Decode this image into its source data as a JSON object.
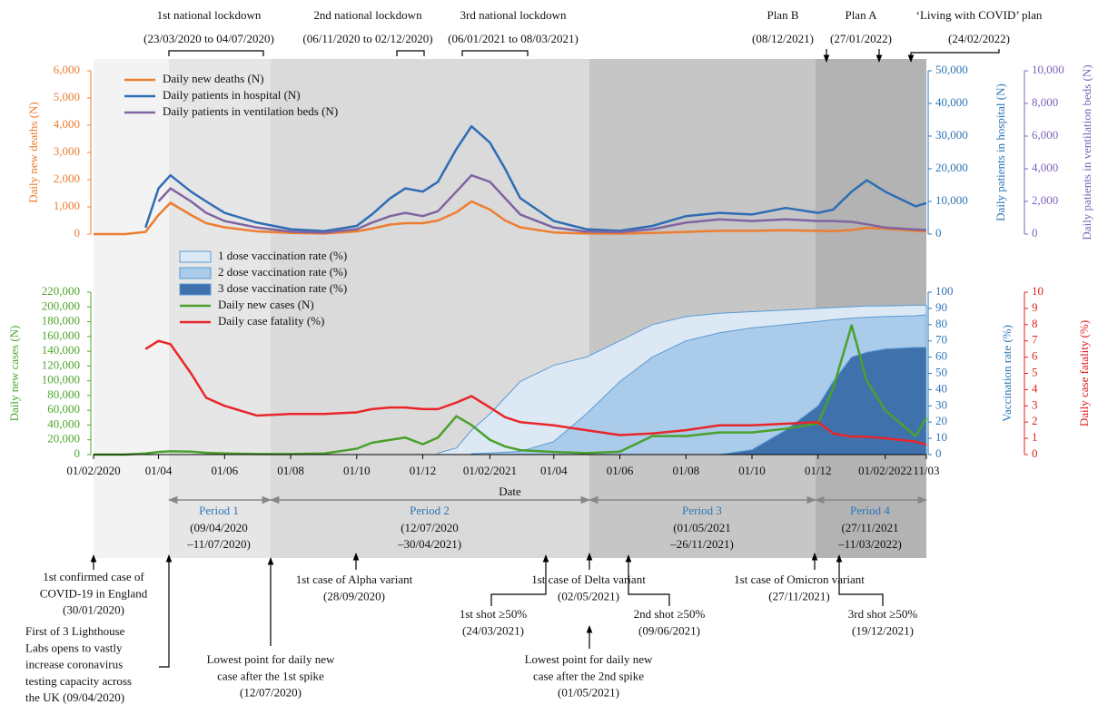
{
  "chart_data": [
    {
      "type": "line",
      "x": [
        "2020-02-01",
        "2020-03-01",
        "2020-03-20",
        "2020-04-01",
        "2020-04-12",
        "2020-05-01",
        "2020-05-15",
        "2020-06-01",
        "2020-07-01",
        "2020-08-01",
        "2020-09-01",
        "2020-10-01",
        "2020-10-15",
        "2020-11-01",
        "2020-11-15",
        "2020-12-01",
        "2020-12-15",
        "2021-01-01",
        "2021-01-15",
        "2021-02-01",
        "2021-02-15",
        "2021-03-01",
        "2021-04-01",
        "2021-05-01",
        "2021-06-01",
        "2021-07-01",
        "2021-08-01",
        "2021-09-01",
        "2021-10-01",
        "2021-11-01",
        "2021-12-01",
        "2021-12-15",
        "2022-01-01",
        "2022-01-15",
        "2022-02-01",
        "2022-03-01",
        "2022-03-11"
      ],
      "xlim": [
        "2020-02-01",
        "2022-03-11"
      ],
      "ylabel": "Daily new deaths (N)",
      "y_color": "#ed7d31",
      "ylim": [
        0,
        6000
      ],
      "yticks": [
        0,
        {
          "value": 1000,
          "label": "1,000"
        },
        {
          "value": 2000,
          "label": "2,000"
        },
        {
          "value": 3000,
          "label": "3,000"
        },
        {
          "value": 4000,
          "label": "4,000"
        },
        {
          "value": 5000,
          "label": "5,000"
        },
        {
          "value": 6000,
          "label": "6,000"
        }
      ],
      "y2label": "Daily patients in hospital (N)",
      "y2_color": "#2e75b6",
      "y2lim": [
        0,
        50000
      ],
      "y2ticks": [
        0,
        {
          "value": 10000,
          "label": "10,000"
        },
        {
          "value": 20000,
          "label": "20,000"
        },
        {
          "value": 30000,
          "label": "30,000"
        },
        {
          "value": 40000,
          "label": "40,000"
        },
        {
          "value": 50000,
          "label": "50,000"
        }
      ],
      "y3label": "Daily patients in ventilation beds (N)",
      "y3_color": "#7f63b8",
      "y3lim": [
        0,
        10000
      ],
      "y3ticks": [
        0,
        {
          "value": 2000,
          "label": "2,000"
        },
        {
          "value": 4000,
          "label": "4,000"
        },
        {
          "value": 6000,
          "label": "6,000"
        },
        {
          "value": 8000,
          "label": "8,000"
        },
        {
          "value": 10000,
          "label": "10,000"
        }
      ],
      "legend": "upper left",
      "series": [
        {
          "name": "Daily new deaths (N)",
          "color": "#ed7d31",
          "axis": "y",
          "values": [
            0,
            0,
            80,
            700,
            1150,
            700,
            400,
            250,
            100,
            40,
            20,
            100,
            200,
            350,
            400,
            400,
            500,
            800,
            1200,
            900,
            500,
            250,
            60,
            20,
            15,
            40,
            80,
            120,
            120,
            140,
            120,
            110,
            150,
            230,
            200,
            120,
            100
          ]
        },
        {
          "name": "Daily patients in hospital (N)",
          "color": "#2e6db4",
          "axis": "y2",
          "values": [
            null,
            null,
            2000,
            14000,
            18000,
            13000,
            10000,
            6500,
            3500,
            1500,
            900,
            2500,
            6000,
            11000,
            14000,
            13000,
            16000,
            26000,
            33000,
            28000,
            20000,
            11000,
            4000,
            1500,
            1000,
            2500,
            5500,
            6500,
            6000,
            8000,
            6500,
            7500,
            13000,
            16500,
            13000,
            8500,
            9500
          ]
        },
        {
          "name": "Daily patients in ventilation beds (N)",
          "color": "#8064a2",
          "axis": "y3",
          "values": [
            null,
            null,
            null,
            2000,
            2800,
            2000,
            1300,
            800,
            400,
            150,
            80,
            300,
            700,
            1100,
            1300,
            1100,
            1400,
            2600,
            3600,
            3200,
            2200,
            1200,
            400,
            150,
            120,
            300,
            700,
            900,
            800,
            900,
            800,
            800,
            750,
            600,
            400,
            280,
            250
          ]
        }
      ]
    },
    {
      "type": "line",
      "x": [
        "2020-02-01",
        "2020-03-01",
        "2020-03-20",
        "2020-04-01",
        "2020-04-12",
        "2020-05-01",
        "2020-05-15",
        "2020-06-01",
        "2020-07-01",
        "2020-08-01",
        "2020-09-01",
        "2020-10-01",
        "2020-10-15",
        "2020-11-01",
        "2020-11-15",
        "2020-12-01",
        "2020-12-15",
        "2021-01-01",
        "2021-01-15",
        "2021-02-01",
        "2021-02-15",
        "2021-03-01",
        "2021-04-01",
        "2021-05-01",
        "2021-06-01",
        "2021-07-01",
        "2021-08-01",
        "2021-09-01",
        "2021-10-01",
        "2021-11-01",
        "2021-12-01",
        "2021-12-15",
        "2022-01-01",
        "2022-01-15",
        "2022-02-01",
        "2022-03-01",
        "2022-03-11"
      ],
      "xlim": [
        "2020-02-01",
        "2022-03-11"
      ],
      "xlabel": "Date",
      "xticks": [
        {
          "value": "2020-02-01",
          "label": "01/02/2020"
        },
        {
          "value": "2020-04-01",
          "label": "01/04"
        },
        {
          "value": "2020-06-01",
          "label": "01/06"
        },
        {
          "value": "2020-08-01",
          "label": "01/08"
        },
        {
          "value": "2020-10-01",
          "label": "01/10"
        },
        {
          "value": "2020-12-01",
          "label": "01/12"
        },
        {
          "value": "2021-02-01",
          "label": "01/02/2021"
        },
        {
          "value": "2021-04-01",
          "label": "01/04"
        },
        {
          "value": "2021-06-01",
          "label": "01/06"
        },
        {
          "value": "2021-08-01",
          "label": "01/08"
        },
        {
          "value": "2021-10-01",
          "label": "01/10"
        },
        {
          "value": "2021-12-01",
          "label": "01/12"
        },
        {
          "value": "2022-02-01",
          "label": "01/02/2022"
        },
        {
          "value": "2022-03-11",
          "label": "11/03"
        }
      ],
      "ylabel": "Daily new cases (N)",
      "y_color": "#4ea72e",
      "ylim": [
        0,
        220000
      ],
      "yticks": [
        0,
        {
          "value": 20000,
          "label": "20,000"
        },
        {
          "value": 40000,
          "label": "40,000"
        },
        {
          "value": 60000,
          "label": "60,000"
        },
        {
          "value": 80000,
          "label": "80,000"
        },
        {
          "value": 100000,
          "label": "100,000"
        },
        {
          "value": 120000,
          "label": "120,000"
        },
        {
          "value": 140000,
          "label": "140,000"
        },
        {
          "value": 160000,
          "label": "160,000"
        },
        {
          "value": 180000,
          "label": "180,000"
        },
        {
          "value": 200000,
          "label": "200,000"
        },
        {
          "value": 220000,
          "label": "220,000"
        }
      ],
      "y2label": "Vaccination rate (%)",
      "y2_color": "#2e75b6",
      "y2lim": [
        0,
        100
      ],
      "y2ticks": [
        0,
        10,
        20,
        30,
        40,
        50,
        60,
        70,
        80,
        90,
        100
      ],
      "y3label": "Daily case fatality (%)",
      "y3_color": "#e02020",
      "y3lim": [
        0,
        10
      ],
      "y3ticks": [
        0,
        1,
        2,
        3,
        4,
        5,
        6,
        7,
        8,
        9,
        10
      ],
      "legend": "upper left",
      "series": [
        {
          "name": "1 dose vaccination rate (%)",
          "type": "area",
          "color": "#dce9f5",
          "axis": "y2",
          "values": [
            null,
            null,
            null,
            null,
            null,
            null,
            null,
            null,
            null,
            null,
            null,
            null,
            null,
            null,
            null,
            null,
            1,
            4,
            15,
            25,
            35,
            45,
            55,
            60,
            70,
            80,
            85,
            87,
            88,
            89,
            90,
            90.5,
            91,
            91.5,
            91.5,
            92,
            92
          ]
        },
        {
          "name": "2 dose vaccination rate (%)",
          "type": "area",
          "color": "#aacbe9",
          "axis": "y2",
          "values": [
            null,
            null,
            null,
            null,
            null,
            null,
            null,
            null,
            null,
            null,
            null,
            null,
            null,
            null,
            null,
            null,
            null,
            null,
            0.5,
            1,
            1.5,
            2,
            8,
            25,
            45,
            60,
            70,
            75,
            78,
            80,
            82,
            83,
            84,
            84.5,
            85,
            85.5,
            86
          ]
        },
        {
          "name": "3 dose vaccination rate (%)",
          "type": "area",
          "color": "#3f72ad",
          "axis": "y2",
          "values": [
            null,
            null,
            null,
            null,
            null,
            null,
            null,
            null,
            null,
            null,
            null,
            null,
            null,
            null,
            null,
            null,
            null,
            null,
            null,
            null,
            null,
            null,
            null,
            null,
            null,
            null,
            null,
            0,
            3,
            15,
            30,
            45,
            60,
            63,
            65,
            66,
            66
          ]
        },
        {
          "name": "Daily new cases (N)",
          "color": "#4aa02c",
          "axis": "y",
          "values": [
            0,
            0,
            1500,
            3500,
            4500,
            4000,
            2500,
            1500,
            700,
            800,
            1500,
            8000,
            16000,
            20000,
            23000,
            14000,
            23000,
            52000,
            40000,
            20000,
            11000,
            6000,
            3500,
            2000,
            4000,
            25000,
            25000,
            30000,
            30000,
            35000,
            42000,
            90000,
            175000,
            100000,
            60000,
            25000,
            50000
          ]
        },
        {
          "name": "Daily case fatality (%)",
          "color": "#e8262a",
          "axis": "y3",
          "values": [
            null,
            null,
            6.5,
            7,
            6.8,
            5,
            3.5,
            3,
            2.4,
            2.5,
            2.5,
            2.6,
            2.8,
            2.9,
            2.9,
            2.8,
            2.8,
            3.2,
            3.6,
            2.9,
            2.3,
            2,
            1.8,
            1.5,
            1.2,
            1.3,
            1.5,
            1.8,
            1.8,
            1.9,
            2,
            1.3,
            1.1,
            1.1,
            1,
            0.8,
            0.6
          ]
        }
      ]
    }
  ],
  "lockdowns": [
    {
      "title": "1st national lockdown",
      "dates": "(23/03/2020 to 04/07/2020)"
    },
    {
      "title": "2nd national lockdown",
      "dates": "(06/11/2020 to 02/12/2020)"
    },
    {
      "title": "3rd national lockdown",
      "dates": "(06/01/2021 to 08/03/2021)"
    }
  ],
  "plans": [
    {
      "title": "Plan B",
      "date": "(08/12/2021)"
    },
    {
      "title": "Plan A",
      "date": "(27/01/2022)"
    },
    {
      "title": "‘Living with COVID’ plan",
      "date": "(24/02/2022)"
    }
  ],
  "periods": [
    {
      "name": "Period 1",
      "start": "(09/04/2020",
      "end": "–11/07/2020)"
    },
    {
      "name": "Period 2",
      "start": "(12/07/2020",
      "end": "–30/04/2021)"
    },
    {
      "name": "Period 3",
      "start": "(01/05/2021",
      "end": "–26/11/2021)"
    },
    {
      "name": "Period 4",
      "start": "(27/11/2021",
      "end": "–11/03/2022)"
    }
  ],
  "events": [
    {
      "lines": [
        "1st confirmed case of",
        "COVID-19 in England",
        "(30/01/2020)"
      ]
    },
    {
      "lines": [
        "First of 3 Lighthouse",
        "Labs opens to vastly",
        "increase coronavirus",
        "testing capacity across",
        "the UK (09/04/2020)"
      ]
    },
    {
      "lines": [
        "Lowest point for daily new",
        "case after the 1st spike",
        "(12/07/2020)"
      ]
    },
    {
      "lines": [
        "1st case of Alpha variant",
        "(28/09/2020)"
      ]
    },
    {
      "lines": [
        "1st shot ≥50%",
        "(24/03/2021)"
      ]
    },
    {
      "lines": [
        "1st case of Delta variant",
        "(02/05/2021)"
      ]
    },
    {
      "lines": [
        "Lowest point for daily new",
        "case after the 2nd spike",
        "(01/05/2021)"
      ]
    },
    {
      "lines": [
        "2nd shot ≥50%",
        "(09/06/2021)"
      ]
    },
    {
      "lines": [
        "1st case of Omicron variant",
        "(27/11/2021)"
      ]
    },
    {
      "lines": [
        "3rd shot ≥50%",
        "(19/12/2021)"
      ]
    }
  ]
}
